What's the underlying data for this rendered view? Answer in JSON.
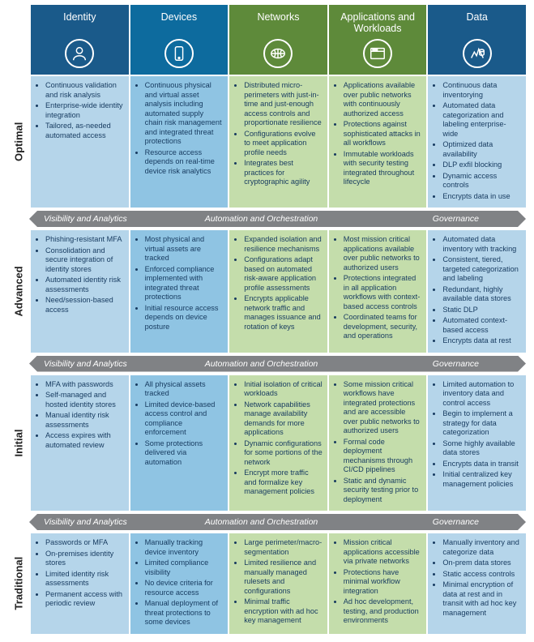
{
  "colors": {
    "header_bg": [
      "#1a5a8a",
      "#0d6b9e",
      "#5e8a3a",
      "#5e8a3a",
      "#1a5a8a"
    ],
    "col_bg": [
      "#b5d5ea",
      "#8fc4e3",
      "#c4ddab",
      "#c4ddab",
      "#b5d5ea"
    ],
    "arrow_bg": "#808285",
    "bullet_text": "#163a5f"
  },
  "columns": [
    {
      "label": "Identity",
      "icon": "person"
    },
    {
      "label": "Devices",
      "icon": "device"
    },
    {
      "label": "Networks",
      "icon": "network"
    },
    {
      "label": "Applications and Workloads",
      "icon": "app"
    },
    {
      "label": "Data",
      "icon": "data"
    }
  ],
  "separator_labels": [
    "Visibility and Analytics",
    "Automation and Orchestration",
    "Governance"
  ],
  "rows": [
    {
      "label": "Optimal",
      "cells": [
        [
          "Continuous validation and risk analysis",
          "Enterprise-wide identity integration",
          "Tailored, as-needed automated access"
        ],
        [
          "Continuous physical and virtual asset analysis including automated supply chain risk management and integrated threat protections",
          "Resource access depends on real-time device risk analytics"
        ],
        [
          "Distributed micro-perimeters with just-in-time and just-enough access controls and proportionate resilience",
          "Configurations evolve to meet application profile needs",
          "Integrates best practices for cryptographic agility"
        ],
        [
          "Applications available over public networks with continuously authorized access",
          "Protections against sophisticated attacks in all workflows",
          "Immutable workloads with security testing integrated throughout lifecycle"
        ],
        [
          "Continuous data inventorying",
          "Automated data categorization and labeling enterprise-wide",
          "Optimized data availability",
          "DLP exfil blocking",
          "Dynamic access controls",
          "Encrypts data in use"
        ]
      ]
    },
    {
      "label": "Advanced",
      "cells": [
        [
          "Phishing-resistant MFA",
          "Consolidation and secure integration of identity stores",
          "Automated identity risk assessments",
          "Need/session-based access"
        ],
        [
          "Most physical and virtual assets are tracked",
          "Enforced compliance implemented with integrated threat protections",
          "Initial resource access depends on device posture"
        ],
        [
          "Expanded isolation and resilience mechanisms",
          "Configurations adapt based on automated risk-aware application profile assessments",
          "Encrypts applicable network traffic and manages issuance and rotation of keys"
        ],
        [
          "Most mission critical applications available over public networks to authorized users",
          "Protections integrated in all application workflows with context-based access controls",
          "Coordinated teams for development, security, and operations"
        ],
        [
          "Automated data inventory with tracking",
          "Consistent, tiered, targeted categorization and labeling",
          "Redundant, highly available data stores",
          "Static DLP",
          "Automated context-based access",
          "Encrypts data at rest"
        ]
      ]
    },
    {
      "label": "Initial",
      "cells": [
        [
          "MFA with passwords",
          "Self-managed and hosted identity stores",
          "Manual identity risk assessments",
          "Access expires with automated review"
        ],
        [
          "All physical assets tracked",
          "Limited device-based access control and compliance enforcement",
          "Some protections delivered via automation"
        ],
        [
          "Initial isolation of critical workloads",
          "Network capabilities manage availability demands for more applications",
          "Dynamic configurations for some portions of the network",
          "Encrypt more traffic and formalize key management policies"
        ],
        [
          "Some mission critical workflows have integrated protections and are accessible over public networks to authorized users",
          "Formal code deployment mechanisms through CI/CD pipelines",
          "Static and dynamic security testing prior to deployment"
        ],
        [
          "Limited automation to inventory data and control access",
          "Begin to implement a strategy for data categorization",
          "Some highly available data stores",
          "Encrypts data in transit",
          "Initial centralized key management policies"
        ]
      ]
    },
    {
      "label": "Traditional",
      "cells": [
        [
          "Passwords or MFA",
          "On-premises identity stores",
          "Limited identity risk assessments",
          "Permanent access with periodic review"
        ],
        [
          "Manually tracking device inventory",
          "Limited compliance visibility",
          "No device criteria for resource access",
          "Manual deployment of threat protections to some devices"
        ],
        [
          "Large perimeter/macro-segmentation",
          "Limited resilience and manually managed rulesets and configurations",
          "Minimal traffic encryption with ad hoc key management"
        ],
        [
          "Mission critical applications accessible via private networks",
          "Protections have minimal workflow integration",
          "Ad hoc development, testing, and production environments"
        ],
        [
          "Manually inventory and categorize data",
          "On-prem data stores",
          "Static access controls",
          "Minimal encryption of data at rest and in transit with ad hoc key management"
        ]
      ]
    }
  ]
}
